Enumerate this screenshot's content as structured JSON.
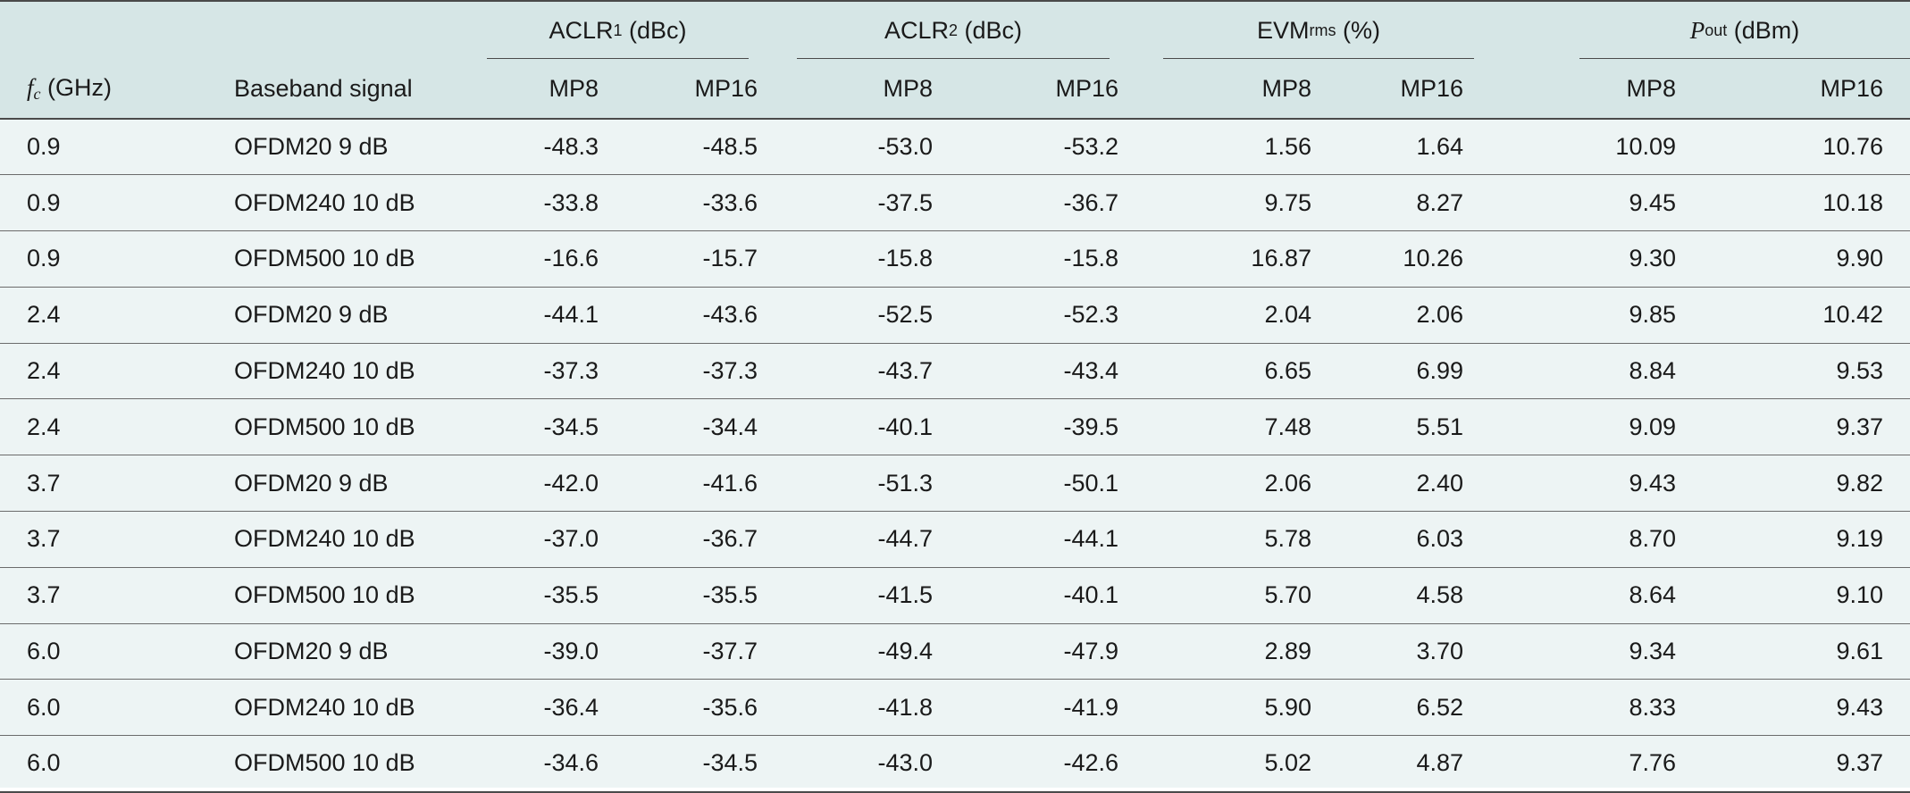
{
  "table": {
    "groups": [
      {
        "base": "ACLR",
        "sub": "1",
        "unit": " (dBc)"
      },
      {
        "base": "ACLR",
        "sub": "2",
        "unit": " (dBc)"
      },
      {
        "base": "EVM",
        "sub": "rms",
        "unit": " (%)"
      },
      {
        "base": "P",
        "sub": "out",
        "unit": " (dBm)"
      }
    ],
    "fc_header": {
      "base": "f",
      "sub": "c",
      "unit": " (GHz)"
    },
    "baseband_header": "Baseband signal",
    "sub_headers": [
      "MP8",
      "MP16",
      "MP8",
      "MP16",
      "MP8",
      "MP16",
      "MP8",
      "MP16"
    ],
    "rows": [
      [
        "0.9",
        "OFDM20 9 dB",
        "-48.3",
        "-48.5",
        "-53.0",
        "-53.2",
        "1.56",
        "1.64",
        "10.09",
        "10.76"
      ],
      [
        "0.9",
        "OFDM240 10 dB",
        "-33.8",
        "-33.6",
        "-37.5",
        "-36.7",
        "9.75",
        "8.27",
        "9.45",
        "10.18"
      ],
      [
        "0.9",
        "OFDM500 10 dB",
        "-16.6",
        "-15.7",
        "-15.8",
        "-15.8",
        "16.87",
        "10.26",
        "9.30",
        "9.90"
      ],
      [
        "2.4",
        "OFDM20 9 dB",
        "-44.1",
        "-43.6",
        "-52.5",
        "-52.3",
        "2.04",
        "2.06",
        "9.85",
        "10.42"
      ],
      [
        "2.4",
        "OFDM240 10 dB",
        "-37.3",
        "-37.3",
        "-43.7",
        "-43.4",
        "6.65",
        "6.99",
        "8.84",
        "9.53"
      ],
      [
        "2.4",
        "OFDM500 10 dB",
        "-34.5",
        "-34.4",
        "-40.1",
        "-39.5",
        "7.48",
        "5.51",
        "9.09",
        "9.37"
      ],
      [
        "3.7",
        "OFDM20 9 dB",
        "-42.0",
        "-41.6",
        "-51.3",
        "-50.1",
        "2.06",
        "2.40",
        "9.43",
        "9.82"
      ],
      [
        "3.7",
        "OFDM240 10 dB",
        "-37.0",
        "-36.7",
        "-44.7",
        "-44.1",
        "5.78",
        "6.03",
        "8.70",
        "9.19"
      ],
      [
        "3.7",
        "OFDM500 10 dB",
        "-35.5",
        "-35.5",
        "-41.5",
        "-40.1",
        "5.70",
        "4.58",
        "8.64",
        "9.10"
      ],
      [
        "6.0",
        "OFDM20 9 dB",
        "-39.0",
        "-37.7",
        "-49.4",
        "-47.9",
        "2.89",
        "3.70",
        "9.34",
        "9.61"
      ],
      [
        "6.0",
        "OFDM240 10 dB",
        "-36.4",
        "-35.6",
        "-41.8",
        "-41.9",
        "5.90",
        "6.52",
        "8.33",
        "9.43"
      ],
      [
        "6.0",
        "OFDM500 10 dB",
        "-34.6",
        "-34.5",
        "-43.0",
        "-42.6",
        "5.02",
        "4.87",
        "7.76",
        "9.37"
      ]
    ]
  }
}
